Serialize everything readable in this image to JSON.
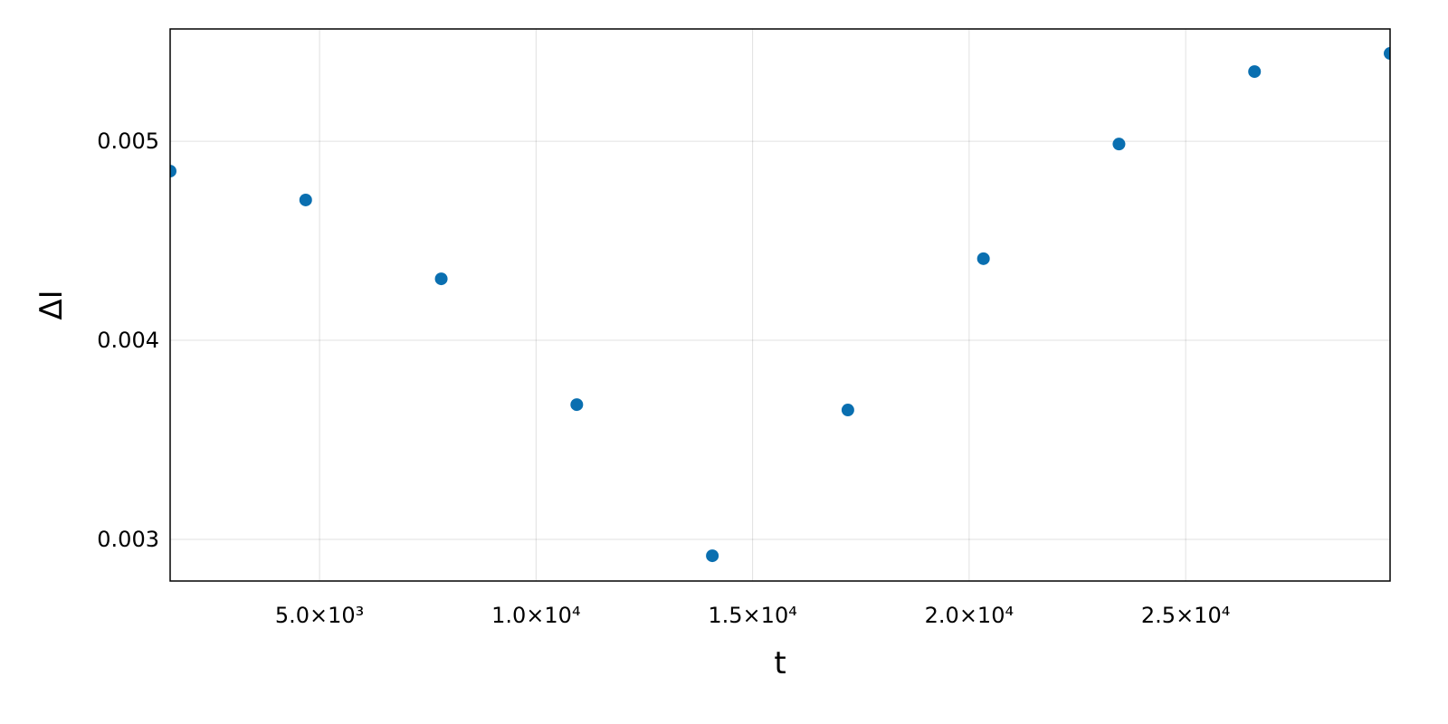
{
  "chart_data": {
    "type": "scatter",
    "x_label": "t",
    "y_label": "ΔI",
    "x": [
      1550,
      4680,
      7810,
      10940,
      14070,
      17200,
      20330,
      23460,
      26590,
      29720
    ],
    "series": [
      {
        "color": "#0a6fb0",
        "values": [
          0.00485,
          0.004705,
          0.004309,
          0.003677,
          0.002918,
          0.00365,
          0.00441,
          0.004986,
          0.00535,
          0.005441
        ]
      }
    ],
    "xlim": [
      1550,
      29720
    ],
    "xticks": [
      {
        "value": 5000,
        "label": "5.0×10³"
      },
      {
        "value": 10000,
        "label": "1.0×10⁴"
      },
      {
        "value": 15000,
        "label": "1.5×10⁴"
      },
      {
        "value": 20000,
        "label": "2.0×10⁴"
      },
      {
        "value": 25000,
        "label": "2.5×10⁴"
      }
    ],
    "ylim": [
      0.002791,
      0.005564
    ],
    "yticks": [
      0.003,
      0.004,
      0.005
    ],
    "grid": true
  }
}
